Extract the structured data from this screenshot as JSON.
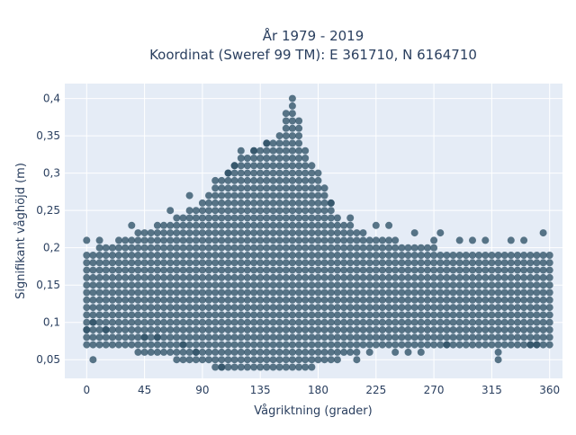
{
  "chart_data": {
    "type": "scatter",
    "title": [
      "År 1979 - 2019",
      "Koordinat (Sweref 99 TM): E 361710, N 6164710"
    ],
    "xlabel": "Vågriktning (grader)",
    "ylabel": "Signifikant våghöjd (m)",
    "xlim": [
      -17,
      370
    ],
    "ylim": [
      0.025,
      0.42
    ],
    "xticks": [
      0,
      45,
      90,
      135,
      180,
      225,
      270,
      315,
      360
    ],
    "xtick_labels": [
      "0",
      "45",
      "90",
      "135",
      "180",
      "225",
      "270",
      "315",
      "360"
    ],
    "yticks": [
      0.05,
      0.1,
      0.15,
      0.2,
      0.25,
      0.3,
      0.35,
      0.4
    ],
    "ytick_labels": [
      "0,05",
      "0,1",
      "0,15",
      "0,2",
      "0,25",
      "0,3",
      "0,35",
      "0,4"
    ],
    "grid": true,
    "marker_color": "#2e5166",
    "background_color": "#e5ecf6",
    "direction_step": 5,
    "height_step": 0.01,
    "envelope": [
      {
        "x": 0,
        "ymin": 0.07,
        "ymax": 0.19
      },
      {
        "x": 15,
        "ymin": 0.07,
        "ymax": 0.2
      },
      {
        "x": 30,
        "ymin": 0.07,
        "ymax": 0.21
      },
      {
        "x": 45,
        "ymin": 0.06,
        "ymax": 0.22
      },
      {
        "x": 60,
        "ymin": 0.06,
        "ymax": 0.23
      },
      {
        "x": 75,
        "ymin": 0.05,
        "ymax": 0.24
      },
      {
        "x": 90,
        "ymin": 0.05,
        "ymax": 0.26
      },
      {
        "x": 105,
        "ymin": 0.04,
        "ymax": 0.29
      },
      {
        "x": 120,
        "ymin": 0.04,
        "ymax": 0.32
      },
      {
        "x": 135,
        "ymin": 0.04,
        "ymax": 0.33
      },
      {
        "x": 150,
        "ymin": 0.04,
        "ymax": 0.35
      },
      {
        "x": 160,
        "ymin": 0.04,
        "ymax": 0.4
      },
      {
        "x": 170,
        "ymin": 0.04,
        "ymax": 0.33
      },
      {
        "x": 185,
        "ymin": 0.05,
        "ymax": 0.27
      },
      {
        "x": 200,
        "ymin": 0.06,
        "ymax": 0.23
      },
      {
        "x": 225,
        "ymin": 0.07,
        "ymax": 0.21
      },
      {
        "x": 255,
        "ymin": 0.07,
        "ymax": 0.2
      },
      {
        "x": 285,
        "ymin": 0.07,
        "ymax": 0.19
      },
      {
        "x": 315,
        "ymin": 0.07,
        "ymax": 0.19
      },
      {
        "x": 345,
        "ymin": 0.07,
        "ymax": 0.19
      },
      {
        "x": 360,
        "ymin": 0.07,
        "ymax": 0.19
      }
    ],
    "outliers": [
      {
        "x": 0,
        "y": 0.21
      },
      {
        "x": 0,
        "y": 0.09
      },
      {
        "x": 5,
        "y": 0.05
      },
      {
        "x": 5,
        "y": 0.1
      },
      {
        "x": 10,
        "y": 0.21
      },
      {
        "x": 15,
        "y": 0.09
      },
      {
        "x": 35,
        "y": 0.23
      },
      {
        "x": 45,
        "y": 0.08
      },
      {
        "x": 55,
        "y": 0.08
      },
      {
        "x": 65,
        "y": 0.25
      },
      {
        "x": 75,
        "y": 0.07
      },
      {
        "x": 80,
        "y": 0.27
      },
      {
        "x": 85,
        "y": 0.06
      },
      {
        "x": 100,
        "y": 0.29
      },
      {
        "x": 105,
        "y": 0.04
      },
      {
        "x": 110,
        "y": 0.3
      },
      {
        "x": 115,
        "y": 0.31
      },
      {
        "x": 120,
        "y": 0.33
      },
      {
        "x": 130,
        "y": 0.33
      },
      {
        "x": 140,
        "y": 0.34
      },
      {
        "x": 180,
        "y": 0.3
      },
      {
        "x": 185,
        "y": 0.28
      },
      {
        "x": 190,
        "y": 0.26
      },
      {
        "x": 195,
        "y": 0.05
      },
      {
        "x": 205,
        "y": 0.24
      },
      {
        "x": 210,
        "y": 0.05
      },
      {
        "x": 220,
        "y": 0.06
      },
      {
        "x": 225,
        "y": 0.23
      },
      {
        "x": 235,
        "y": 0.23
      },
      {
        "x": 240,
        "y": 0.06
      },
      {
        "x": 250,
        "y": 0.06
      },
      {
        "x": 255,
        "y": 0.22
      },
      {
        "x": 260,
        "y": 0.06
      },
      {
        "x": 270,
        "y": 0.21
      },
      {
        "x": 275,
        "y": 0.22
      },
      {
        "x": 280,
        "y": 0.07
      },
      {
        "x": 290,
        "y": 0.21
      },
      {
        "x": 300,
        "y": 0.21
      },
      {
        "x": 310,
        "y": 0.21
      },
      {
        "x": 320,
        "y": 0.06
      },
      {
        "x": 320,
        "y": 0.05
      },
      {
        "x": 330,
        "y": 0.21
      },
      {
        "x": 340,
        "y": 0.21
      },
      {
        "x": 345,
        "y": 0.07
      },
      {
        "x": 350,
        "y": 0.07
      },
      {
        "x": 355,
        "y": 0.22
      }
    ]
  }
}
